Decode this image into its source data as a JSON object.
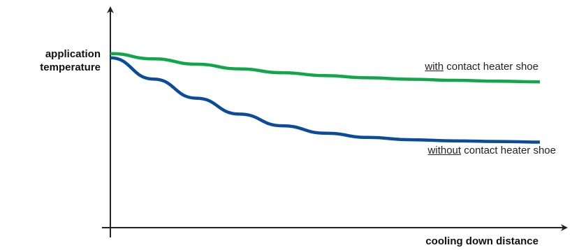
{
  "chart_data": {
    "type": "line",
    "title": "",
    "ylabel_line1": "application",
    "ylabel_line2": "temperature",
    "xlabel": "cooling down distance",
    "grid": false,
    "legend": "inline labels at right end of lines",
    "series": [
      {
        "name_underlined": "with",
        "name_rest": " contact heater shoe",
        "color": "#10a64a",
        "values": [
          {
            "x": 0.0,
            "y": 0.82
          },
          {
            "x": 0.1,
            "y": 0.795
          },
          {
            "x": 0.2,
            "y": 0.77
          },
          {
            "x": 0.3,
            "y": 0.748
          },
          {
            "x": 0.4,
            "y": 0.73
          },
          {
            "x": 0.5,
            "y": 0.716
          },
          {
            "x": 0.6,
            "y": 0.706
          },
          {
            "x": 0.7,
            "y": 0.699
          },
          {
            "x": 0.8,
            "y": 0.694
          },
          {
            "x": 0.9,
            "y": 0.69
          },
          {
            "x": 1.0,
            "y": 0.687
          }
        ]
      },
      {
        "name_underlined": "without",
        "name_rest": " contact heater shoe",
        "color": "#0a4c9a",
        "values": [
          {
            "x": 0.0,
            "y": 0.8
          },
          {
            "x": 0.1,
            "y": 0.7
          },
          {
            "x": 0.2,
            "y": 0.61
          },
          {
            "x": 0.3,
            "y": 0.535
          },
          {
            "x": 0.4,
            "y": 0.48
          },
          {
            "x": 0.5,
            "y": 0.445
          },
          {
            "x": 0.6,
            "y": 0.425
          },
          {
            "x": 0.7,
            "y": 0.414
          },
          {
            "x": 0.8,
            "y": 0.409
          },
          {
            "x": 0.9,
            "y": 0.406
          },
          {
            "x": 1.0,
            "y": 0.403
          }
        ]
      }
    ],
    "xlim": [
      0,
      1
    ],
    "ylim": [
      0,
      1
    ]
  }
}
